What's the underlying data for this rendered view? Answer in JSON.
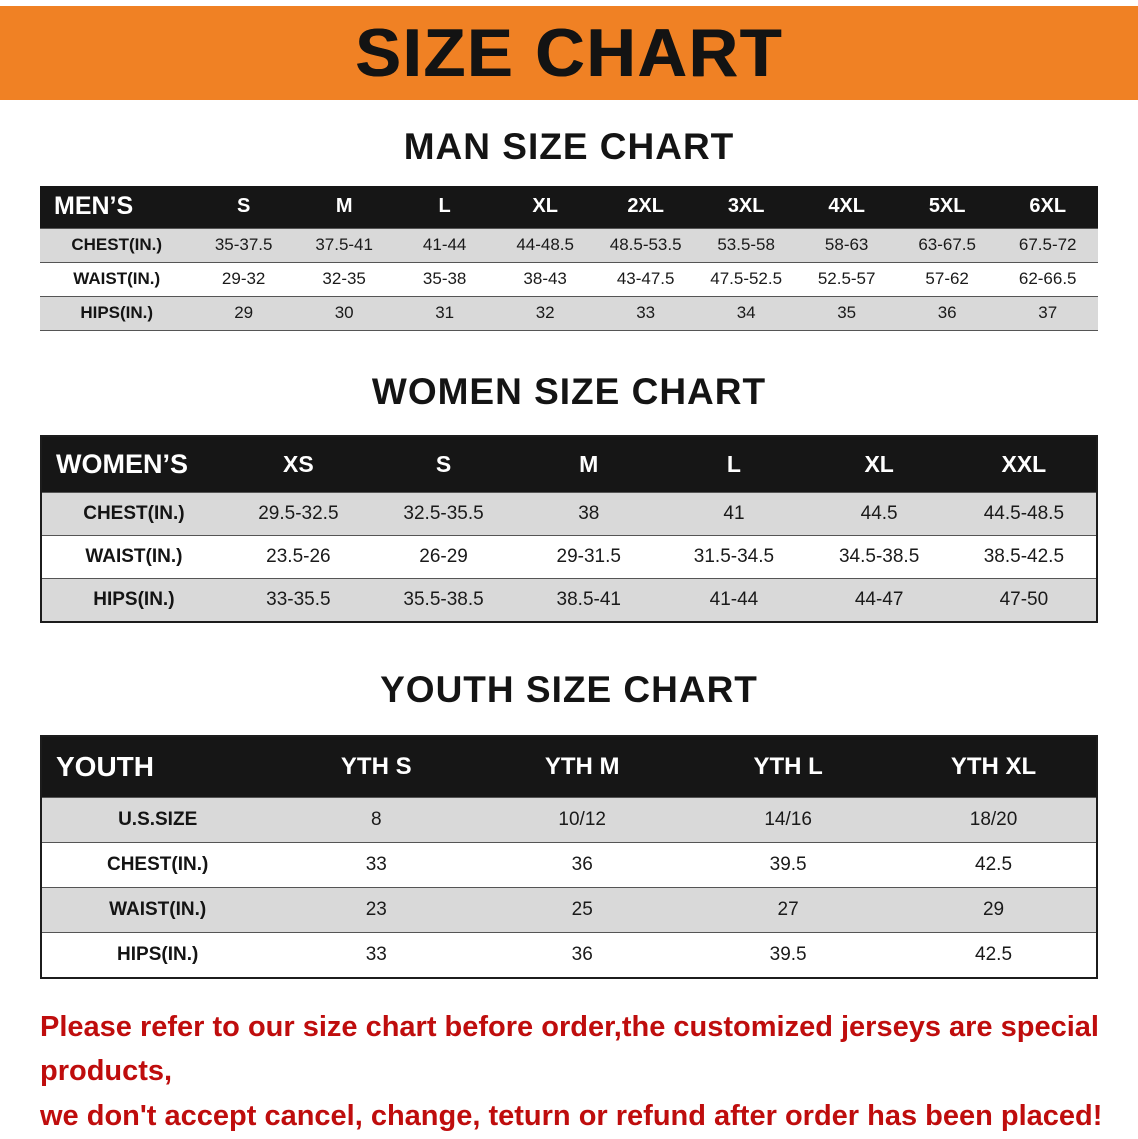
{
  "banner": {
    "title": "SIZE CHART",
    "bg_color": "#f08124",
    "text_color": "#131313"
  },
  "sections": [
    {
      "heading": "MAN SIZE CHART",
      "header": [
        "MEN’S",
        "S",
        "M",
        "L",
        "XL",
        "2XL",
        "3XL",
        "4XL",
        "5XL",
        "6XL"
      ],
      "rows": [
        [
          "CHEST(IN.)",
          "35-37.5",
          "37.5-41",
          "41-44",
          "44-48.5",
          "48.5-53.5",
          "53.5-58",
          "58-63",
          "63-67.5",
          "67.5-72"
        ],
        [
          "WAIST(IN.)",
          "29-32",
          "32-35",
          "35-38",
          "38-43",
          "43-47.5",
          "47.5-52.5",
          "52.5-57",
          "57-62",
          "62-66.5"
        ],
        [
          "HIPS(IN.)",
          "29",
          "30",
          "31",
          "32",
          "33",
          "34",
          "35",
          "36",
          "37"
        ]
      ]
    },
    {
      "heading": "WOMEN SIZE CHART",
      "header": [
        "WOMEN’S",
        "XS",
        "S",
        "M",
        "L",
        "XL",
        "XXL"
      ],
      "rows": [
        [
          "CHEST(IN.)",
          "29.5-32.5",
          "32.5-35.5",
          "38",
          "41",
          "44.5",
          "44.5-48.5"
        ],
        [
          "WAIST(IN.)",
          "23.5-26",
          "26-29",
          "29-31.5",
          "31.5-34.5",
          "34.5-38.5",
          "38.5-42.5"
        ],
        [
          "HIPS(IN.)",
          "33-35.5",
          "35.5-38.5",
          "38.5-41",
          "41-44",
          "44-47",
          "47-50"
        ]
      ]
    },
    {
      "heading": "YOUTH SIZE CHART",
      "header": [
        "YOUTH",
        "YTH S",
        "YTH M",
        "YTH L",
        "YTH XL"
      ],
      "rows": [
        [
          "U.S.SIZE",
          "8",
          "10/12",
          "14/16",
          "18/20"
        ],
        [
          "CHEST(IN.)",
          "33",
          "36",
          "39.5",
          "42.5"
        ],
        [
          "WAIST(IN.)",
          "23",
          "25",
          "27",
          "29"
        ],
        [
          "HIPS(IN.)",
          "33",
          "36",
          "39.5",
          "42.5"
        ]
      ]
    }
  ],
  "notice": {
    "line1": "Please refer to our size chart before order,the customized jerseys are special products,",
    "line2": "we don't accept cancel, change, teturn or refund after order has been placed!",
    "color": "#bf0d0d"
  }
}
